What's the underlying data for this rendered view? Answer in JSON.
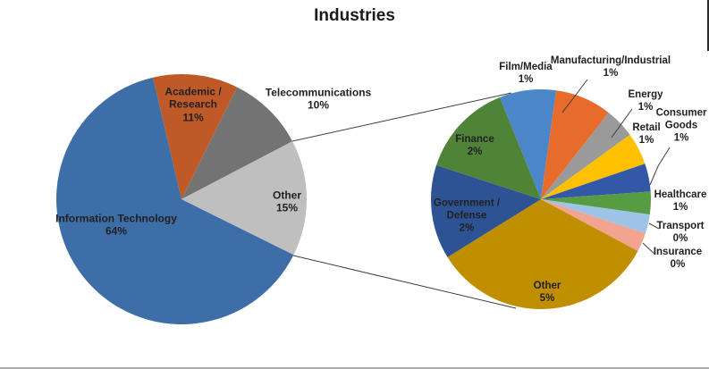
{
  "title": "Industries",
  "chart_data": {
    "type": "pie",
    "variant": "pie-of-pie",
    "title": "Industries",
    "unit": "%",
    "legend": "none",
    "series_line_color": "#3f3f3f",
    "label_text_color": "#212121",
    "background_color": "#ffffff",
    "primary_pie": {
      "name": "industries-main",
      "start_angle_deg": -13.2,
      "slices": [
        {
          "id": "academic-research",
          "label": "Academic / Research",
          "pct_label": "11%",
          "value": 11,
          "color": "#bf5a28",
          "label_lines": [
            "Academic /",
            "Research",
            "11%"
          ]
        },
        {
          "id": "telecommunications",
          "label": "Telecommunications",
          "pct_label": "10%",
          "value": 10,
          "color": "#737373",
          "label_lines": [
            "Telecommunications",
            "10%"
          ]
        },
        {
          "id": "other-primary",
          "label": "Other",
          "pct_label": "15%",
          "value": 15,
          "color": "#bfbfbf",
          "label_lines": [
            "Other",
            "15%"
          ]
        },
        {
          "id": "information-technology",
          "label": "Information Technology",
          "pct_label": "64%",
          "value": 64,
          "color": "#3e6ea8",
          "label_lines": [
            "Information Technology",
            "64%"
          ]
        }
      ]
    },
    "secondary_pie": {
      "name": "other-breakdown",
      "start_angle_deg": -22,
      "slices": [
        {
          "id": "film-media",
          "label": "Film/Media",
          "pct_label": "1%",
          "value": 1.25,
          "color": "#4a86c8",
          "label_lines": [
            "Film/Media",
            "1%"
          ]
        },
        {
          "id": "manufacturing-industrial",
          "label": "Manufacturing/Industrial",
          "pct_label": "1%",
          "value": 1.25,
          "color": "#e76c2b",
          "label_lines": [
            "Manufacturing/Industrial",
            "1%"
          ]
        },
        {
          "id": "energy",
          "label": "Energy",
          "pct_label": "1%",
          "value": 0.67,
          "color": "#9a9a9a",
          "label_lines": [
            "Energy",
            "1%"
          ]
        },
        {
          "id": "retail",
          "label": "Retail",
          "pct_label": "1%",
          "value": 0.71,
          "color": "#ffc000",
          "label_lines": [
            "Retail",
            "1%"
          ]
        },
        {
          "id": "consumer-goods",
          "label": "Consumer Goods",
          "pct_label": "1%",
          "value": 0.62,
          "color": "#3358a8",
          "label_lines": [
            "Consumer",
            "Goods",
            "1%"
          ]
        },
        {
          "id": "healthcare",
          "label": "Healthcare",
          "pct_label": "1%",
          "value": 0.5,
          "color": "#579b42",
          "label_lines": [
            "Healthcare",
            "1%"
          ]
        },
        {
          "id": "transport",
          "label": "Transport",
          "pct_label": "0%",
          "value": 0.42,
          "color": "#9dc3e6",
          "label_lines": [
            "Transport",
            "0%"
          ]
        },
        {
          "id": "insurance",
          "label": "Insurance",
          "pct_label": "0%",
          "value": 0.42,
          "color": "#f2a490",
          "label_lines": [
            "Insurance",
            "0%"
          ]
        },
        {
          "id": "other-secondary",
          "label": "Other",
          "pct_label": "5%",
          "value": 5.0,
          "color": "#bf8f00",
          "label_lines": [
            "Other",
            "5%"
          ]
        },
        {
          "id": "government-defense",
          "label": "Government / Defense",
          "pct_label": "2%",
          "value": 2.08,
          "color": "#2e5395",
          "label_lines": [
            "Government /",
            "Defense",
            "2%"
          ]
        },
        {
          "id": "finance",
          "label": "Finance",
          "pct_label": "2%",
          "value": 2.08,
          "color": "#4e8338",
          "label_lines": [
            "Finance",
            "2%"
          ]
        }
      ]
    }
  }
}
